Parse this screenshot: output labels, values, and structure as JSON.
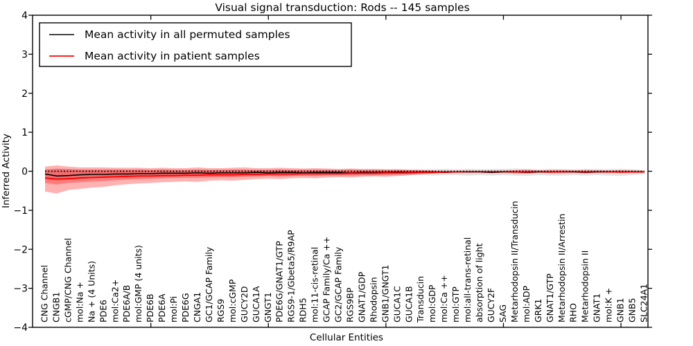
{
  "title": "Visual signal transduction: Rods -- 145 samples",
  "axes": {
    "x_label": "Cellular Entities",
    "y_label": "Inferred Activity",
    "y_tick_labels": [
      "4",
      "3",
      "2",
      "1",
      "0",
      "−1",
      "−2",
      "−3",
      "−4"
    ],
    "y_tick_values": [
      4,
      3,
      2,
      1,
      0,
      -1,
      -2,
      -3,
      -4
    ],
    "y_range": [
      -4,
      4
    ],
    "x_major_tick_indices": [
      9,
      19,
      29,
      39,
      49
    ],
    "grid": false
  },
  "legend": {
    "position": "upper left",
    "items": [
      {
        "label": "Mean activity in all permuted samples",
        "color": "#000000"
      },
      {
        "label": "Mean activity in patient samples",
        "color": "#ff0000"
      }
    ]
  },
  "colors": {
    "permuted_line": "#000000",
    "patient_line": "#ff0000",
    "zero_line": "#000000",
    "permuted_band": "rgba(128,128,128,0.22)",
    "patient_band": "rgba(255,0,0,0.3)",
    "patient_band_inner": "rgba(255,0,0,0.3)",
    "frame": "#000000"
  },
  "chart_data": {
    "type": "line",
    "title": "Visual signal transduction: Rods -- 145 samples",
    "xlabel": "Cellular Entities",
    "ylabel": "Inferred Activity",
    "ylim": [
      -4,
      4
    ],
    "legend_position": "upper left",
    "grid": false,
    "categories": [
      "CNG Channel",
      "CNGB1",
      "cGMP/CNG Channel",
      "mol:Na +",
      "Na + (4 Units)",
      "PDE6",
      "mol:Ca2+",
      "PDE6A/B",
      "mol:GMP (4 units)",
      "PDE6B",
      "PDE6A",
      "mol:Pi",
      "PDE6G",
      "CNGA1",
      "GC1/GCAP Family",
      "RGS9",
      "mol:cGMP",
      "GUCY2D",
      "GUCA1A",
      "GNGT1",
      "PDE6G/GNAT1/GTP",
      "RGS9-1/Gbeta5/R9AP",
      "RDH5",
      "mol:11-cis-retinal",
      "GCAP Family/Ca ++",
      "GC2/GCAP Family",
      "RGS9BP",
      "GNAT1/GDP",
      "Rhodopsin",
      "GNB1/GNGT1",
      "GUCA1C",
      "GUCA1B",
      "Transducin",
      "mol:GDP",
      "mol:Ca ++",
      "mol:GTP",
      "mol:all-trans-retinal",
      "absorption of light",
      "GUCY2F",
      "SAG",
      "Metarhodopsin II/Transducin",
      "mol:ADP",
      "GRK1",
      "GNAT1/GTP",
      "Metarhodopsin II/Arrestin",
      "RHO",
      "Metarhodopsin II",
      "GNAT1",
      "mol:K +",
      "GNB1",
      "GNB5",
      "SLC24A1"
    ],
    "series": [
      {
        "name": "Mean activity in all permuted samples",
        "color": "#000000",
        "style": "solid",
        "width": 1.6,
        "values": [
          -0.07,
          -0.12,
          -0.11,
          -0.09,
          -0.08,
          -0.08,
          -0.07,
          -0.07,
          -0.06,
          -0.06,
          -0.05,
          -0.05,
          -0.05,
          -0.04,
          -0.05,
          -0.04,
          -0.04,
          -0.04,
          -0.03,
          -0.04,
          -0.03,
          -0.03,
          -0.04,
          -0.03,
          -0.03,
          -0.03,
          -0.04,
          -0.03,
          -0.03,
          -0.03,
          -0.02,
          -0.03,
          -0.02,
          -0.02,
          -0.03,
          -0.02,
          -0.02,
          -0.02,
          -0.03,
          -0.02,
          -0.02,
          -0.03,
          -0.02,
          -0.02,
          -0.02,
          -0.02,
          -0.03,
          -0.02,
          -0.02,
          -0.02,
          -0.02,
          -0.02
        ]
      },
      {
        "name": "Mean activity in patient samples",
        "color": "#ff0000",
        "style": "solid",
        "width": 1.8,
        "values": [
          -0.17,
          -0.2,
          -0.19,
          -0.17,
          -0.16,
          -0.15,
          -0.14,
          -0.13,
          -0.12,
          -0.12,
          -0.11,
          -0.11,
          -0.1,
          -0.1,
          -0.09,
          -0.09,
          -0.09,
          -0.08,
          -0.08,
          -0.07,
          -0.07,
          -0.07,
          -0.06,
          -0.06,
          -0.06,
          -0.06,
          -0.05,
          -0.05,
          -0.05,
          -0.04,
          -0.04,
          -0.04,
          -0.03,
          -0.03,
          -0.02,
          -0.02,
          -0.01,
          -0.01,
          -0.01,
          -0.01,
          -0.02,
          -0.02,
          -0.01,
          -0.02,
          -0.02,
          -0.01,
          -0.02,
          -0.01,
          -0.02,
          -0.02,
          -0.02,
          -0.02
        ]
      },
      {
        "name": "zero reference",
        "color": "#000000",
        "style": "dotted",
        "width": 1.7,
        "constant": 0
      }
    ],
    "bands": [
      {
        "name": "permuted samples range",
        "fill": "rgba(128,128,128,0.22)",
        "upper": [
          0.05,
          0.07,
          0.06,
          0.05,
          0.05,
          0.05,
          0.05,
          0.04,
          0.05,
          0.04,
          0.05,
          0.04,
          0.04,
          0.05,
          0.04,
          0.04,
          0.05,
          0.04,
          0.04,
          0.04,
          0.05,
          0.04,
          0.04,
          0.05,
          0.04,
          0.04,
          0.05,
          0.04,
          0.05,
          0.04,
          0.05,
          0.04,
          0.05,
          0.05,
          0.06,
          0.05,
          0.06,
          0.05,
          0.06,
          0.06,
          0.07,
          0.06,
          0.05,
          0.06,
          0.06,
          0.05,
          0.06,
          0.06,
          0.05,
          0.06,
          0.05,
          0.03
        ],
        "lower": [
          -0.2,
          -0.25,
          -0.22,
          -0.2,
          -0.19,
          -0.18,
          -0.17,
          -0.17,
          -0.16,
          -0.15,
          -0.15,
          -0.14,
          -0.14,
          -0.13,
          -0.14,
          -0.13,
          -0.13,
          -0.12,
          -0.12,
          -0.12,
          -0.12,
          -0.11,
          -0.12,
          -0.11,
          -0.11,
          -0.11,
          -0.12,
          -0.11,
          -0.11,
          -0.1,
          -0.11,
          -0.1,
          -0.1,
          -0.11,
          -0.1,
          -0.1,
          -0.11,
          -0.1,
          -0.11,
          -0.1,
          -0.11,
          -0.12,
          -0.1,
          -0.11,
          -0.11,
          -0.1,
          -0.11,
          -0.1,
          -0.11,
          -0.12,
          -0.1,
          -0.07
        ]
      },
      {
        "name": "patient samples range",
        "fill": "rgba(255,0,0,0.3)",
        "upper": [
          0.12,
          0.15,
          0.12,
          0.1,
          0.1,
          0.1,
          0.09,
          0.09,
          0.09,
          0.08,
          0.09,
          0.08,
          0.08,
          0.1,
          0.08,
          0.08,
          0.09,
          0.1,
          0.08,
          0.08,
          0.09,
          0.08,
          0.07,
          0.08,
          0.07,
          0.06,
          0.07,
          0.06,
          0.06,
          0.05,
          0.05,
          0.04,
          0.03,
          0.02,
          0.01,
          0.01,
          0.01,
          0.01,
          0.01,
          0.01,
          0.03,
          0.04,
          0.02,
          0.03,
          0.03,
          0.02,
          0.03,
          0.02,
          0.02,
          0.03,
          0.02,
          0.01
        ],
        "lower": [
          -0.52,
          -0.57,
          -0.48,
          -0.45,
          -0.42,
          -0.4,
          -0.36,
          -0.33,
          -0.31,
          -0.3,
          -0.28,
          -0.27,
          -0.26,
          -0.27,
          -0.24,
          -0.23,
          -0.24,
          -0.22,
          -0.2,
          -0.19,
          -0.2,
          -0.18,
          -0.17,
          -0.18,
          -0.16,
          -0.15,
          -0.16,
          -0.14,
          -0.13,
          -0.14,
          -0.12,
          -0.1,
          -0.08,
          -0.06,
          -0.04,
          -0.02,
          -0.02,
          -0.02,
          -0.02,
          -0.03,
          -0.05,
          -0.06,
          -0.03,
          -0.05,
          -0.04,
          -0.03,
          -0.05,
          -0.03,
          -0.03,
          -0.05,
          -0.03,
          -0.02
        ]
      },
      {
        "name": "patient samples inner range",
        "fill": "rgba(255,0,0,0.3)",
        "upper": [
          0.04,
          0.06,
          0.05,
          0.04,
          0.04,
          0.04,
          0.04,
          0.04,
          0.04,
          0.03,
          0.04,
          0.03,
          0.03,
          0.04,
          0.03,
          0.03,
          0.04,
          0.04,
          0.03,
          0.03,
          0.04,
          0.03,
          0.03,
          0.03,
          0.03,
          0.02,
          0.03,
          0.02,
          0.02,
          0.02,
          0.02,
          0.02,
          0.01,
          0.01,
          0.0,
          0.0,
          0.0,
          0.0,
          0.0,
          0.0,
          0.01,
          0.02,
          0.01,
          0.01,
          0.01,
          0.01,
          0.01,
          0.01,
          0.01,
          0.01,
          0.01,
          0.0
        ],
        "lower": [
          -0.3,
          -0.34,
          -0.3,
          -0.28,
          -0.26,
          -0.25,
          -0.23,
          -0.21,
          -0.2,
          -0.19,
          -0.18,
          -0.17,
          -0.17,
          -0.17,
          -0.16,
          -0.15,
          -0.15,
          -0.14,
          -0.13,
          -0.12,
          -0.13,
          -0.12,
          -0.11,
          -0.12,
          -0.1,
          -0.1,
          -0.1,
          -0.09,
          -0.09,
          -0.09,
          -0.08,
          -0.07,
          -0.05,
          -0.04,
          -0.02,
          -0.01,
          -0.01,
          -0.01,
          -0.01,
          -0.01,
          -0.03,
          -0.04,
          -0.02,
          -0.03,
          -0.02,
          -0.02,
          -0.03,
          -0.02,
          -0.02,
          -0.03,
          -0.02,
          -0.01
        ]
      }
    ]
  }
}
